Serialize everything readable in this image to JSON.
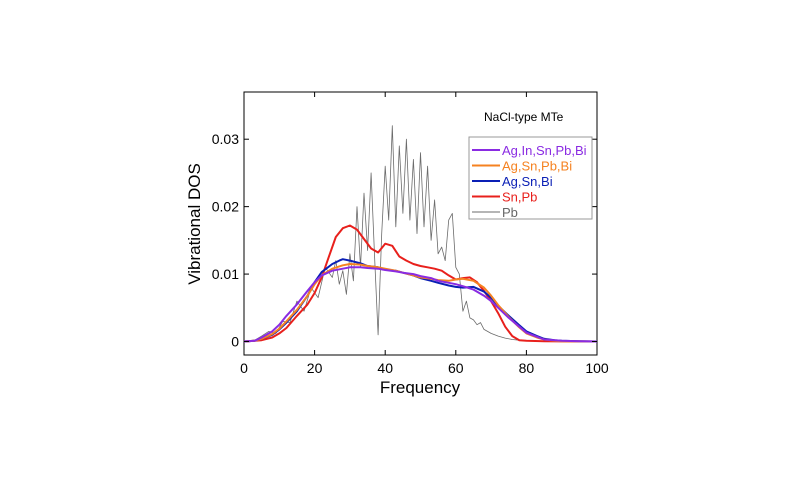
{
  "chart_data": {
    "type": "line",
    "title": "",
    "annotation": "NaCl-type MTe",
    "xlabel": "Frequency",
    "ylabel": "Vibrational DOS",
    "xlim": [
      0,
      100
    ],
    "ylim": [
      -0.002,
      0.037
    ],
    "xticks": [
      0,
      20,
      40,
      60,
      80,
      100
    ],
    "xtick_labels": [
      "0",
      "20",
      "40",
      "60",
      "80",
      "100"
    ],
    "yticks": [
      0,
      0.01,
      0.02,
      0.03
    ],
    "ytick_labels": [
      "0",
      "0.01",
      "0.02",
      "0.03"
    ],
    "grid": false,
    "legend_position": "right",
    "series": [
      {
        "name": "Ag,In,Sn,Pb,Bi",
        "color": "#8a2be2",
        "x": [
          0,
          3,
          5,
          8,
          10,
          12,
          15,
          18,
          20,
          22,
          25,
          28,
          30,
          33,
          35,
          38,
          40,
          43,
          45,
          48,
          50,
          53,
          55,
          58,
          60,
          62,
          65,
          68,
          70,
          72,
          75,
          78,
          80,
          83,
          85,
          88,
          90,
          95,
          100
        ],
        "y": [
          0,
          0.0001,
          0.0006,
          0.0015,
          0.0025,
          0.0038,
          0.0055,
          0.0075,
          0.0088,
          0.0098,
          0.0105,
          0.0108,
          0.011,
          0.011,
          0.0109,
          0.0108,
          0.0106,
          0.0104,
          0.0102,
          0.01,
          0.0097,
          0.0094,
          0.009,
          0.0087,
          0.0085,
          0.0082,
          0.0077,
          0.0068,
          0.006,
          0.005,
          0.0035,
          0.0022,
          0.0013,
          0.0007,
          0.0003,
          0.0002,
          0.0001,
          5e-05,
          0
        ]
      },
      {
        "name": "Ag,Sn,Pb,Bi",
        "color": "#f58220",
        "x": [
          0,
          3,
          5,
          8,
          10,
          12,
          15,
          18,
          20,
          22,
          25,
          28,
          30,
          33,
          35,
          38,
          40,
          43,
          45,
          48,
          50,
          53,
          55,
          58,
          60,
          62,
          65,
          68,
          70,
          72,
          75,
          78,
          80,
          83,
          85,
          88,
          90,
          95,
          100
        ],
        "y": [
          0,
          0.0001,
          0.0004,
          0.0011,
          0.0019,
          0.003,
          0.0047,
          0.0068,
          0.0085,
          0.0098,
          0.0108,
          0.0113,
          0.0115,
          0.0114,
          0.0112,
          0.011,
          0.0108,
          0.0105,
          0.0102,
          0.0098,
          0.0095,
          0.0093,
          0.0091,
          0.009,
          0.0092,
          0.0093,
          0.009,
          0.008,
          0.0068,
          0.0054,
          0.0036,
          0.0021,
          0.0012,
          0.0006,
          0.0003,
          0.0001,
          5e-05,
          2e-05,
          0
        ]
      },
      {
        "name": "Ag,Sn,Bi",
        "color": "#0a1fb5",
        "x": [
          0,
          3,
          5,
          8,
          10,
          12,
          15,
          18,
          20,
          22,
          25,
          27,
          28,
          30,
          33,
          35,
          38,
          40,
          43,
          45,
          48,
          50,
          53,
          55,
          58,
          60,
          62,
          65,
          68,
          70,
          72,
          75,
          78,
          80,
          83,
          85,
          88,
          90,
          95,
          100
        ],
        "y": [
          0,
          0.0001,
          0.0004,
          0.001,
          0.0018,
          0.0028,
          0.0045,
          0.0068,
          0.0088,
          0.0103,
          0.0115,
          0.012,
          0.0122,
          0.012,
          0.0116,
          0.0112,
          0.011,
          0.0107,
          0.0105,
          0.0102,
          0.0098,
          0.0094,
          0.009,
          0.0087,
          0.0083,
          0.0081,
          0.008,
          0.0081,
          0.0074,
          0.0065,
          0.0053,
          0.0038,
          0.0024,
          0.0015,
          0.0008,
          0.0004,
          0.0002,
          0.0001,
          3e-05,
          0
        ]
      },
      {
        "name": "Sn,Pb",
        "color": "#e8201c",
        "x": [
          0,
          3,
          5,
          8,
          10,
          12,
          15,
          18,
          20,
          22,
          24,
          26,
          28,
          30,
          32,
          34,
          36,
          38,
          40,
          42,
          44,
          46,
          48,
          50,
          52,
          54,
          56,
          58,
          60,
          62,
          64,
          66,
          68,
          70,
          72,
          74,
          76,
          78,
          80,
          85,
          90,
          100
        ],
        "y": [
          0,
          0.0001,
          0.0002,
          0.0006,
          0.0012,
          0.002,
          0.0038,
          0.0055,
          0.0072,
          0.0095,
          0.0125,
          0.0155,
          0.0168,
          0.0172,
          0.0166,
          0.0152,
          0.0138,
          0.0132,
          0.0145,
          0.0142,
          0.0126,
          0.012,
          0.0115,
          0.0112,
          0.011,
          0.0108,
          0.0105,
          0.0098,
          0.0092,
          0.0094,
          0.0095,
          0.0088,
          0.0075,
          0.006,
          0.0042,
          0.0022,
          0.0008,
          0.0002,
          0.0001,
          3e-05,
          1e-05,
          0
        ]
      },
      {
        "name": "Pb",
        "color": "#6b6b6b",
        "x": [
          0,
          3,
          5,
          7,
          9,
          11,
          13,
          15,
          17,
          19,
          21,
          23,
          25,
          26,
          27,
          28,
          29,
          30,
          31,
          32,
          33,
          34,
          35,
          36,
          37,
          38,
          39,
          40,
          41,
          42,
          43,
          44,
          45,
          46,
          47,
          48,
          49,
          50,
          51,
          52,
          53,
          54,
          55,
          56,
          57,
          58,
          59,
          60,
          61,
          62,
          63,
          64,
          65,
          66,
          67,
          68,
          70,
          72,
          74,
          76,
          78,
          80,
          85,
          90,
          100
        ],
        "y": [
          0,
          0.0002,
          0.0008,
          0.0015,
          0.0012,
          0.003,
          0.0028,
          0.006,
          0.0045,
          0.008,
          0.0065,
          0.011,
          0.0095,
          0.012,
          0.0085,
          0.0105,
          0.007,
          0.013,
          0.009,
          0.02,
          0.011,
          0.022,
          0.0135,
          0.025,
          0.0125,
          0.001,
          0.016,
          0.026,
          0.018,
          0.032,
          0.017,
          0.029,
          0.019,
          0.03,
          0.018,
          0.027,
          0.016,
          0.028,
          0.017,
          0.026,
          0.015,
          0.021,
          0.013,
          0.014,
          0.012,
          0.018,
          0.019,
          0.011,
          0.01,
          0.0045,
          0.006,
          0.0035,
          0.0032,
          0.0025,
          0.0028,
          0.0018,
          0.0012,
          0.0008,
          0.0005,
          0.0003,
          0.0002,
          0.0001,
          5e-05,
          2e-05,
          0
        ]
      }
    ]
  }
}
